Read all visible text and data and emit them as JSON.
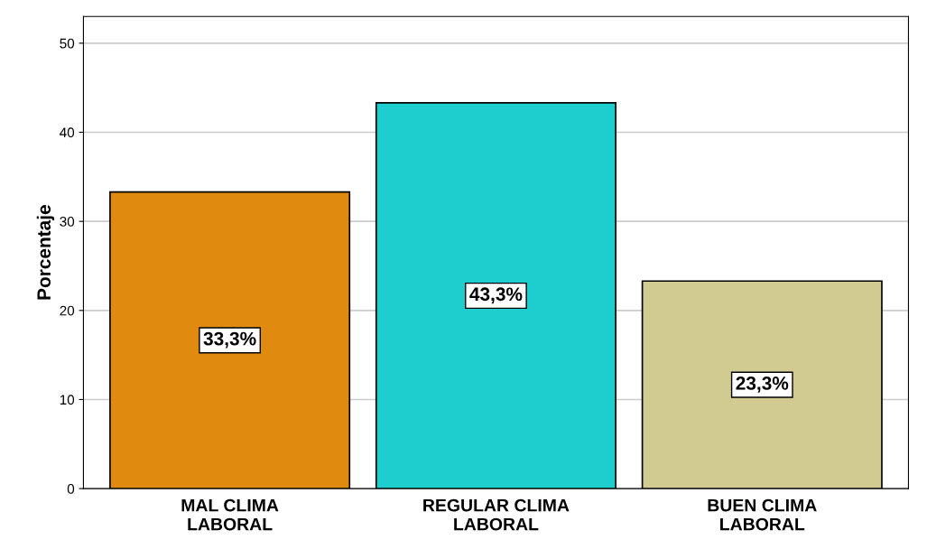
{
  "chart_data": {
    "type": "bar",
    "ylabel": "Porcentaje",
    "categories": [
      "MAL CLIMA LABORAL",
      "REGULAR CLIMA LABORAL",
      "BUEN CLIMA LABORAL"
    ],
    "values": [
      33.3,
      43.3,
      23.3
    ],
    "colors": [
      "#e08a10",
      "#1ecece",
      "#d2cb91"
    ],
    "value_labels": [
      "33,3%",
      "43,3%",
      "23,3%"
    ],
    "ylim": [
      0,
      53
    ],
    "yticks": [
      0,
      10,
      20,
      30,
      40,
      50
    ],
    "grid": "y",
    "legend": false
  }
}
